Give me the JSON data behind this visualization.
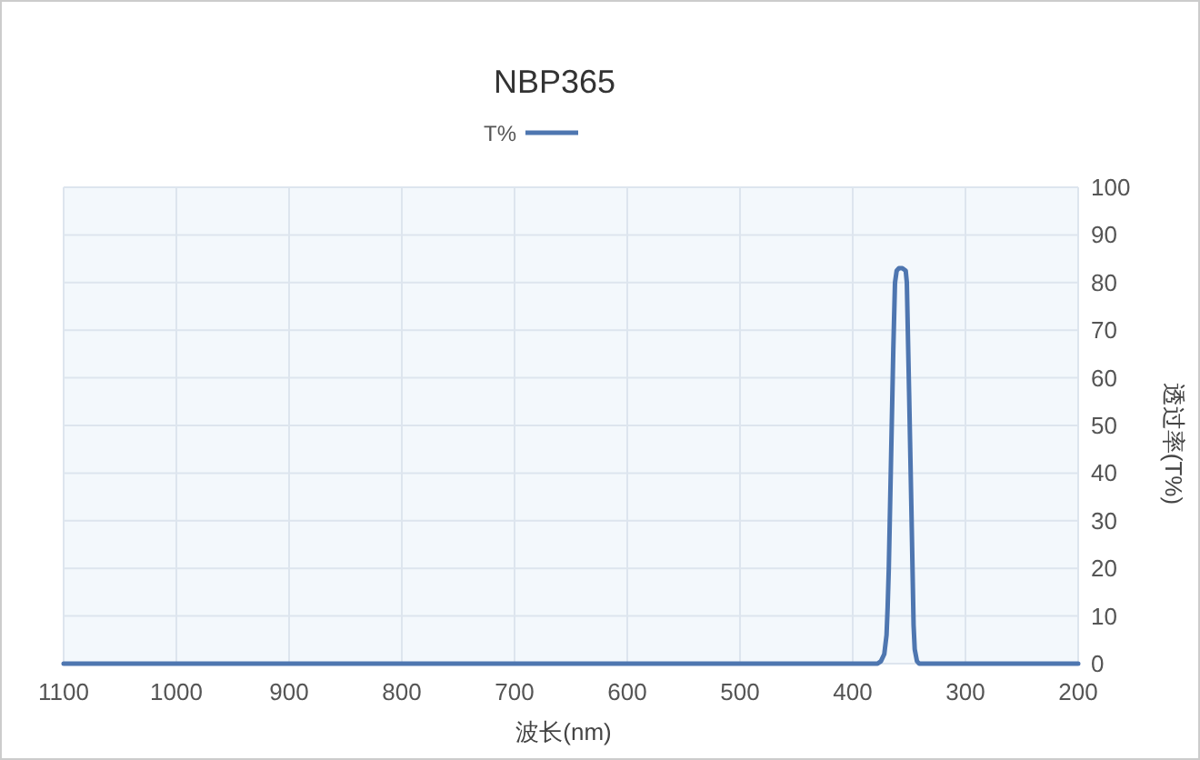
{
  "chart_data": {
    "type": "line",
    "title": "NBP365",
    "xlabel": "波长(nm)",
    "ylabel": "透过率(T%)",
    "x": [
      1100,
      500,
      400,
      378,
      375,
      372,
      370,
      369,
      368,
      366,
      364,
      362.5,
      361,
      359,
      356,
      353,
      352,
      350,
      348,
      346,
      345,
      343,
      341,
      300,
      200
    ],
    "series": [
      {
        "name": "T%",
        "color": "#4e76b0",
        "values": [
          0,
          0,
          0,
          0,
          0.5,
          2,
          6,
          12,
          20,
          43,
          66,
          80,
          82.5,
          83,
          83,
          82.5,
          80,
          57,
          33,
          8,
          3,
          0.5,
          0,
          0,
          0
        ]
      }
    ],
    "xlim": [
      1100,
      200
    ],
    "xticks": [
      1100,
      1000,
      900,
      800,
      700,
      600,
      500,
      400,
      300,
      200
    ],
    "ylim": [
      0,
      100
    ],
    "yticks": [
      0,
      10,
      20,
      30,
      40,
      50,
      60,
      70,
      80,
      90,
      100
    ],
    "grid": true,
    "legend": "top",
    "marker": "none",
    "line_style": "solid"
  }
}
